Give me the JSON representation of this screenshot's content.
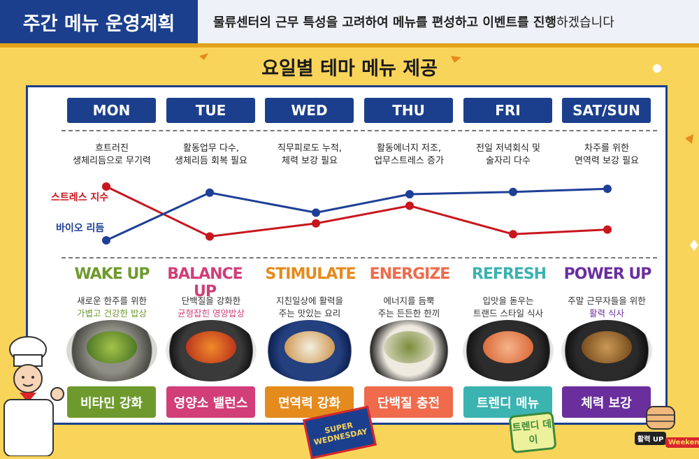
{
  "header": {
    "title": "주간 메뉴 운영계획",
    "subtitle_parts": [
      "물류센터의 근무 특성을 고려하여  메뉴를 편성하고 이벤트를 진행",
      "하겠습니다"
    ]
  },
  "main_title": "요일별 테마 메뉴 제공",
  "days": [
    "MON",
    "TUE",
    "WED",
    "THU",
    "FRI",
    "SAT/SUN"
  ],
  "notes": [
    [
      "흐트러진",
      "생체리듬으로 무기력"
    ],
    [
      "활동업무 다수,",
      "생체리듬 회복 필요"
    ],
    [
      "직무피로도 누적,",
      "체력 보강 필요"
    ],
    [
      "활동에너지 저조,",
      "업무스트레스 증가"
    ],
    [
      "전일 저녁회식 및",
      "술자리 다수"
    ],
    [
      "차주를 위한",
      "면역력 보강 필요"
    ]
  ],
  "chart_data": {
    "type": "line",
    "categories": [
      "MON",
      "TUE",
      "WED",
      "THU",
      "FRI",
      "SAT/SUN"
    ],
    "series": [
      {
        "name": "스트레스 지수",
        "color": "#c8161d",
        "values": [
          0.8,
          0.15,
          0.32,
          0.55,
          0.18,
          0.24
        ]
      },
      {
        "name": "바이오 리듬",
        "color": "#1e3f96",
        "values": [
          0.1,
          0.72,
          0.46,
          0.7,
          0.73,
          0.77
        ]
      }
    ]
  },
  "themes": [
    {
      "name": "WAKE UP",
      "color": "#6e9a2d",
      "desc1": "새로운 한주를 위한",
      "desc2": "가볍고 건강한 밥상",
      "desc2_color": "#6e9a2d",
      "label": "비타민 강화",
      "label_color": "#6e9a2d"
    },
    {
      "name": "BALANCE UP",
      "color": "#d13e78",
      "desc1": "단백질을 강화한",
      "desc2": "균형잡힌 영양밥상",
      "desc2_color": "#d13e78",
      "label": "영양소 밸런스",
      "label_color": "#d13e78"
    },
    {
      "name": "STIMULATE",
      "color": "#e58a1c",
      "desc1": "지친일상에 활력을",
      "desc2": "주는 맛있는 요리",
      "desc2_color": "#333333",
      "label": "면역력 강화",
      "label_color": "#e58a1c"
    },
    {
      "name": "ENERGIZE",
      "color": "#ef6b4c",
      "desc1": "에너지를 듬뿍",
      "desc2": "주는 든든한 한끼",
      "desc2_color": "#333333",
      "label": "단백질 충전",
      "label_color": "#ef6b4c"
    },
    {
      "name": "REFRESH",
      "color": "#3bb3b0",
      "desc1": "입맛을 돋우는",
      "desc2": "트랜드 스타일 식사",
      "desc2_color": "#333333",
      "label": "트렌디 메뉴",
      "label_color": "#3bb3b0"
    },
    {
      "name": "POWER UP",
      "color": "#6a2f9c",
      "desc1": "주말 근무자들을 위한",
      "desc2": "활력 식사",
      "desc2_color": "#6a2f9c",
      "label": "체력 보강",
      "label_color": "#6a2f9c"
    }
  ],
  "stickers": {
    "wednesday": "SUPER WEDNESDAY",
    "trendy": "트렌디 데이",
    "power": "활력 UP",
    "weekend": "Weekend"
  }
}
